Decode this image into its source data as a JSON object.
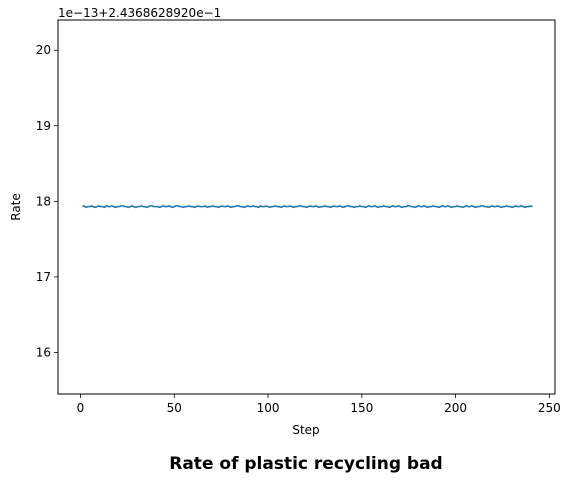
{
  "chart_data": {
    "type": "line",
    "title": "Rate of plastic recycling bad",
    "xlabel": "Step",
    "ylabel": "Rate",
    "y_offset_label": "1e−13+2.4368628920e−1",
    "xlim": [
      -12,
      253
    ],
    "ylim": [
      15.45,
      20.4
    ],
    "x_ticks": [
      0,
      50,
      100,
      150,
      200,
      250
    ],
    "y_ticks": [
      16,
      17,
      18,
      19,
      20
    ],
    "grid": false,
    "line_color": "#1f77b4",
    "series": [
      {
        "x_start": 1,
        "x_end": 241,
        "values": [
          17.93,
          17.94,
          17.92,
          17.93,
          17.93,
          17.94,
          17.93,
          17.92,
          17.93,
          17.94,
          17.93,
          17.93,
          17.92,
          17.94,
          17.93,
          17.93,
          17.94,
          17.93,
          17.92,
          17.93,
          17.93,
          17.94,
          17.94,
          17.93,
          17.93,
          17.92,
          17.93,
          17.94,
          17.93,
          17.92,
          17.93,
          17.93,
          17.94,
          17.93,
          17.93,
          17.92,
          17.93,
          17.94,
          17.94,
          17.93,
          17.93,
          17.93,
          17.92,
          17.93,
          17.94,
          17.93,
          17.93,
          17.94,
          17.93,
          17.92,
          17.93,
          17.94,
          17.94,
          17.93,
          17.93,
          17.92,
          17.93,
          17.93,
          17.94,
          17.93,
          17.93,
          17.92,
          17.93,
          17.94,
          17.93,
          17.93,
          17.93,
          17.94,
          17.92,
          17.93,
          17.93,
          17.94,
          17.93,
          17.93,
          17.92,
          17.93,
          17.94,
          17.93,
          17.93,
          17.94,
          17.93,
          17.92,
          17.93,
          17.93,
          17.94,
          17.94,
          17.93,
          17.93,
          17.92,
          17.93,
          17.94,
          17.93,
          17.93,
          17.94,
          17.93,
          17.93,
          17.92,
          17.94,
          17.93,
          17.93,
          17.94,
          17.93,
          17.92,
          17.93,
          17.93,
          17.94,
          17.93,
          17.93,
          17.92,
          17.93,
          17.94,
          17.93,
          17.93,
          17.94,
          17.93,
          17.92,
          17.93,
          17.93,
          17.94,
          17.94,
          17.93,
          17.93,
          17.92,
          17.93,
          17.94,
          17.93,
          17.93,
          17.94,
          17.93,
          17.92,
          17.93,
          17.93,
          17.94,
          17.93,
          17.93,
          17.92,
          17.93,
          17.94,
          17.93,
          17.93,
          17.94,
          17.93,
          17.92,
          17.93,
          17.94,
          17.94,
          17.93,
          17.93,
          17.92,
          17.93,
          17.93,
          17.94,
          17.93,
          17.93,
          17.92,
          17.93,
          17.94,
          17.93,
          17.93,
          17.94,
          17.93,
          17.92,
          17.93,
          17.93,
          17.94,
          17.93,
          17.93,
          17.92,
          17.93,
          17.94,
          17.93,
          17.93,
          17.94,
          17.93,
          17.92,
          17.93,
          17.93,
          17.94,
          17.94,
          17.93,
          17.93,
          17.92,
          17.93,
          17.94,
          17.93,
          17.93,
          17.94,
          17.93,
          17.92,
          17.93,
          17.93,
          17.94,
          17.93,
          17.93,
          17.92,
          17.93,
          17.94,
          17.93,
          17.93,
          17.94,
          17.93,
          17.92,
          17.93,
          17.93,
          17.94,
          17.93,
          17.93,
          17.92,
          17.93,
          17.94,
          17.93,
          17.93,
          17.94,
          17.93,
          17.92,
          17.93,
          17.93,
          17.94,
          17.94,
          17.93,
          17.93,
          17.92,
          17.93,
          17.94,
          17.93,
          17.93,
          17.94,
          17.93,
          17.92,
          17.93,
          17.93,
          17.94,
          17.93,
          17.93,
          17.92,
          17.93,
          17.94,
          17.93,
          17.93,
          17.94,
          17.93,
          17.92,
          17.93,
          17.93,
          17.94,
          17.93
        ]
      }
    ]
  }
}
